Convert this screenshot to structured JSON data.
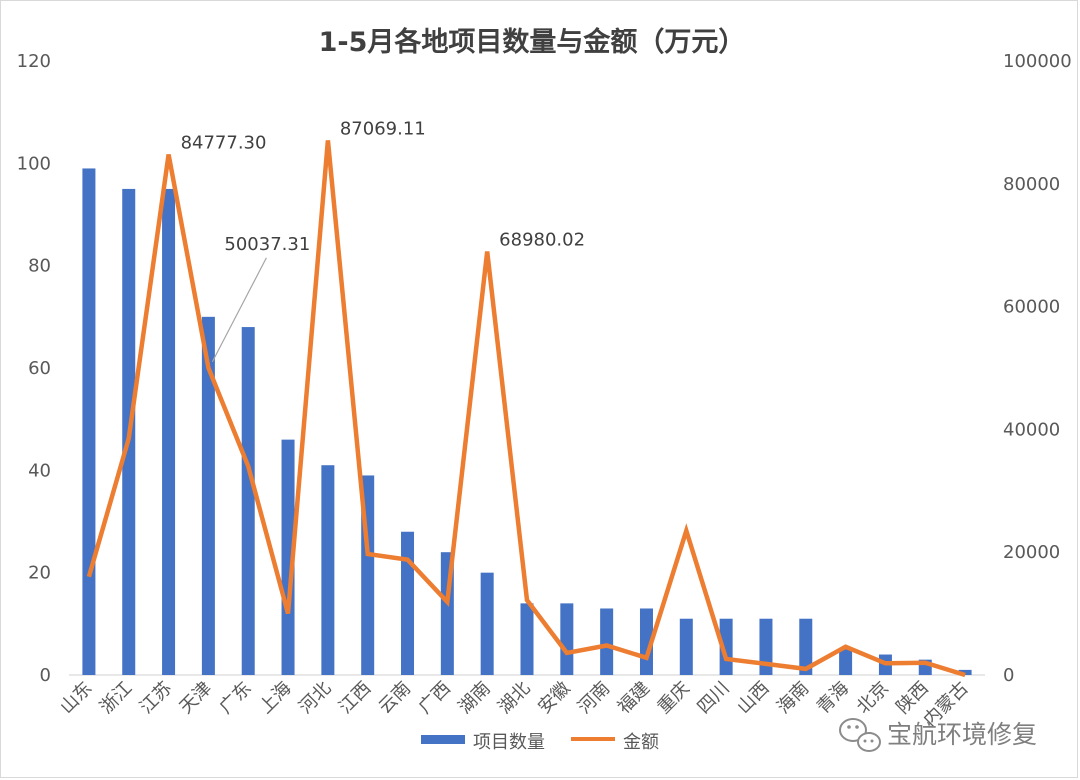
{
  "chart_data": {
    "type": "bar",
    "title": "1-5月各地项目数量与金额（万元）",
    "categories": [
      "山东",
      "浙江",
      "江苏",
      "天津",
      "广东",
      "上海",
      "河北",
      "江西",
      "云南",
      "广西",
      "湖南",
      "湖北",
      "安徽",
      "河南",
      "福建",
      "重庆",
      "四川",
      "山西",
      "海南",
      "青海",
      "北京",
      "陕西",
      "内蒙古"
    ],
    "series": [
      {
        "name": "项目数量",
        "chart": "bar",
        "axis": "left",
        "color": "#4472c4",
        "values": [
          99,
          95,
          95,
          70,
          68,
          46,
          41,
          39,
          28,
          24,
          20,
          14,
          14,
          13,
          13,
          11,
          11,
          11,
          11,
          5,
          4,
          3,
          1
        ]
      },
      {
        "name": "金额",
        "chart": "line",
        "axis": "right",
        "color": "#ed7d31",
        "values": [
          16000,
          38500,
          84777.3,
          50037.31,
          34000,
          10000,
          87069.11,
          19700,
          18800,
          11900,
          68980.02,
          12200,
          3600,
          4800,
          2800,
          23500,
          2600,
          1800,
          1000,
          4600,
          1900,
          2000,
          0
        ]
      }
    ],
    "ylim_left": [
      0,
      120
    ],
    "yticks_left": [
      "0",
      "20",
      "40",
      "60",
      "80",
      "100",
      "120"
    ],
    "ylim_right": [
      0,
      100000
    ],
    "yticks_right": [
      "0",
      "20000",
      "40000",
      "60000",
      "80000",
      "100000"
    ],
    "data_labels": [
      {
        "index": 2,
        "text": "84777.30"
      },
      {
        "index": 3,
        "text": "50037.31"
      },
      {
        "index": 6,
        "text": "87069.11"
      },
      {
        "index": 10,
        "text": "68980.02"
      }
    ],
    "grid": false,
    "legend": "bottom",
    "watermark": "宝航环境修复"
  }
}
